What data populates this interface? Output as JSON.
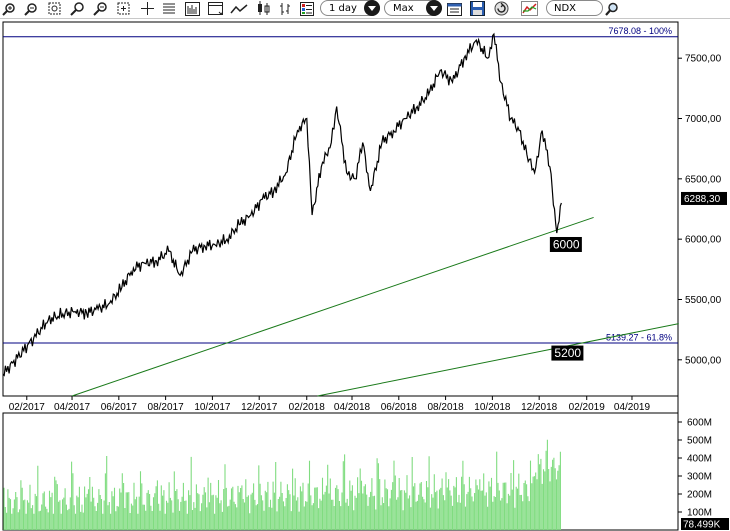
{
  "toolbar": {
    "interval": "1 day",
    "range": "Max",
    "symbol": "NDX",
    "icons": [
      "zoom-in-icon",
      "zoom-out-icon",
      "zoom-fit-icon",
      "zoom-select-icon",
      "zoom-reset-icon",
      "fit-screen-icon",
      "crosshair-icon",
      "list-icon",
      "volume-bars-icon",
      "window-icon",
      "line-chart-icon",
      "candlestick-icon",
      "bar-chart-icon",
      "legend-icon",
      "calendar-icon",
      "save-icon",
      "refresh-icon",
      "instrument-icon",
      "magnifier-icon"
    ]
  },
  "colors": {
    "price": "#000000",
    "trendline": "#1a7a1a",
    "level_line": "#000080",
    "volume": "#80dc80",
    "label_bg": "#000000"
  },
  "chart_data": {
    "type": "line",
    "x_range": [
      "2017-01-01",
      "2019-05-31"
    ],
    "ylim": [
      4700,
      7800
    ],
    "y_ticks": [
      "5000,00",
      "5500,00",
      "6000,00",
      "6500,00",
      "7000,00",
      "7500,00"
    ],
    "x_ticks": [
      "02/2017",
      "04/2017",
      "06/2017",
      "08/2017",
      "10/2017",
      "12/2017",
      "02/2018",
      "04/2018",
      "06/2018",
      "08/2018",
      "10/2018",
      "12/2018",
      "02/2019",
      "04/2019"
    ],
    "last_price_label": "6288,30",
    "series": [
      {
        "values": [
          [
            "2017-01-01",
            4880
          ],
          [
            "2017-01-20",
            5020
          ],
          [
            "2017-02-10",
            5180
          ],
          [
            "2017-03-01",
            5330
          ],
          [
            "2017-03-20",
            5380
          ],
          [
            "2017-04-05",
            5400
          ],
          [
            "2017-04-20",
            5390
          ],
          [
            "2017-05-05",
            5420
          ],
          [
            "2017-05-20",
            5470
          ],
          [
            "2017-06-05",
            5600
          ],
          [
            "2017-06-20",
            5760
          ],
          [
            "2017-07-05",
            5800
          ],
          [
            "2017-07-20",
            5820
          ],
          [
            "2017-08-05",
            5900
          ],
          [
            "2017-08-20",
            5700
          ],
          [
            "2017-09-05",
            5900
          ],
          [
            "2017-09-20",
            5950
          ],
          [
            "2017-10-05",
            5950
          ],
          [
            "2017-10-20",
            6000
          ],
          [
            "2017-11-05",
            6120
          ],
          [
            "2017-11-20",
            6200
          ],
          [
            "2017-12-05",
            6330
          ],
          [
            "2017-12-20",
            6400
          ],
          [
            "2018-01-05",
            6550
          ],
          [
            "2018-01-20",
            6900
          ],
          [
            "2018-02-01",
            7000
          ],
          [
            "2018-02-08",
            6200
          ],
          [
            "2018-02-20",
            6600
          ],
          [
            "2018-03-05",
            6800
          ],
          [
            "2018-03-12",
            7100
          ],
          [
            "2018-03-25",
            6550
          ],
          [
            "2018-04-05",
            6500
          ],
          [
            "2018-04-15",
            6800
          ],
          [
            "2018-04-25",
            6400
          ],
          [
            "2018-05-10",
            6800
          ],
          [
            "2018-05-25",
            6900
          ],
          [
            "2018-06-10",
            7000
          ],
          [
            "2018-06-25",
            7100
          ],
          [
            "2018-07-10",
            7200
          ],
          [
            "2018-07-25",
            7400
          ],
          [
            "2018-08-10",
            7300
          ],
          [
            "2018-08-25",
            7500
          ],
          [
            "2018-09-10",
            7650
          ],
          [
            "2018-09-25",
            7500
          ],
          [
            "2018-10-03",
            7700
          ],
          [
            "2018-10-12",
            7300
          ],
          [
            "2018-10-25",
            7000
          ],
          [
            "2018-11-05",
            6900
          ],
          [
            "2018-11-15",
            6700
          ],
          [
            "2018-11-25",
            6550
          ],
          [
            "2018-12-05",
            6900
          ],
          [
            "2018-12-15",
            6600
          ],
          [
            "2018-12-24",
            6050
          ],
          [
            "2018-12-30",
            6300
          ]
        ]
      }
    ],
    "volume": {
      "y_ticks": [
        "100M",
        "200M",
        "300M",
        "400M",
        "500M",
        "600M"
      ],
      "last_label": "78.499K",
      "ylim": [
        0,
        650
      ]
    },
    "lines": [
      {
        "label": "7678.08 - 100%",
        "y": 7678.08
      },
      {
        "label": "5139.27 - 61.8%",
        "y": 5139.27
      }
    ],
    "trendlines": [
      {
        "from": [
          "2017-04-01",
          4700
        ],
        "to": [
          "2019-02-10",
          6180
        ]
      },
      {
        "from": [
          "2018-02-15",
          4700
        ],
        "to": [
          "2019-06-01",
          5300
        ]
      }
    ],
    "level_labels": [
      {
        "text": "6000",
        "at": [
          "2018-12-28",
          5960
        ]
      },
      {
        "text": "5200",
        "at": [
          "2018-12-30",
          5060
        ]
      }
    ]
  }
}
